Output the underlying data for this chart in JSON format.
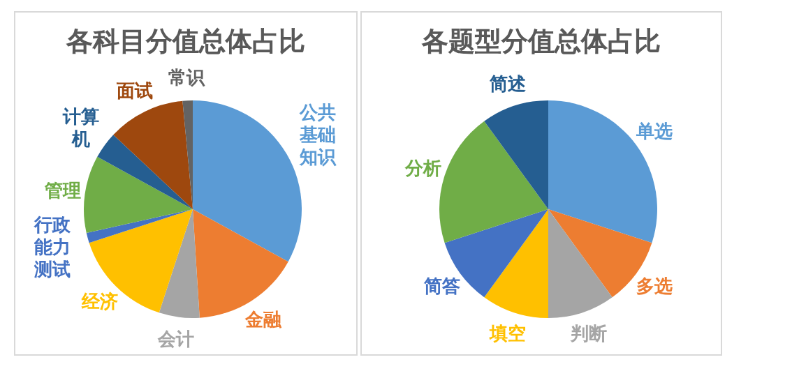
{
  "chart_data": [
    {
      "type": "pie",
      "title": "各科目分值总体占比",
      "categories": [
        "公共基础知识",
        "金融",
        "会计",
        "经济",
        "行政能力测试",
        "管理",
        "计算机",
        "面试",
        "常识"
      ],
      "values": [
        33,
        16,
        6,
        15,
        1.5,
        11.5,
        4,
        11.5,
        1.5
      ],
      "colors": [
        "#5b9bd5",
        "#ed7d31",
        "#a5a5a5",
        "#ffc000",
        "#4472c4",
        "#70ad47",
        "#255e91",
        "#9e480e",
        "#636363"
      ],
      "legend": false
    },
    {
      "type": "pie",
      "title": "各题型分值总体占比",
      "categories": [
        "单选",
        "多选",
        "判断",
        "填空",
        "简答",
        "分析",
        "简述"
      ],
      "values": [
        30,
        10,
        10,
        10,
        10,
        20,
        10
      ],
      "colors": [
        "#5b9bd5",
        "#ed7d31",
        "#a5a5a5",
        "#ffc000",
        "#4472c4",
        "#70ad47",
        "#255e91"
      ],
      "legend": false
    }
  ]
}
